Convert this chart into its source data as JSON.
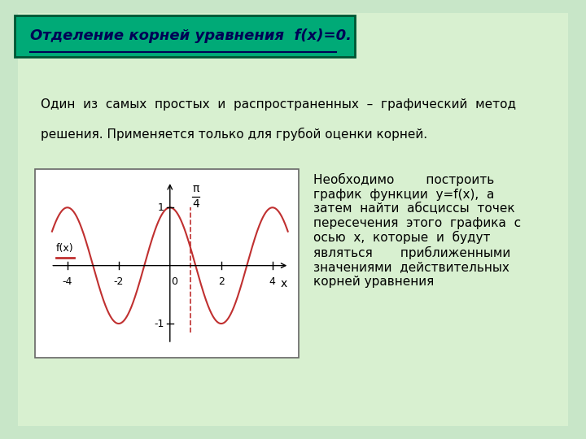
{
  "background_color": "#c8e6c8",
  "title_text": "Отделение корней уравнения  f(x)=0.",
  "title_bg": "#00aa77",
  "title_border": "#006644",
  "title_fontsize": 13,
  "body_text1_lines": [
    "Один  из  самых  простых  и  распространенных  –  графический  метод",
    "решения. Применяется только для грубой оценки корней."
  ],
  "body_text2": "Необходимо        построить\nграфик  функции  у=f(x),  а\nзатем  найти  абсциссы  точек\nпересечения  этого  графика  с\nосью  х,  которые  и  будут\nявляться       приближенными\nзначениями  действительных\nкорней уравнения",
  "body_fontsize": 11,
  "curve_color": "#c03030",
  "dashed_color": "#c03030",
  "pi_label": "π",
  "four_label": "4",
  "x_label": "x",
  "fx_label": "f(x)",
  "legend_color": "#c03030"
}
